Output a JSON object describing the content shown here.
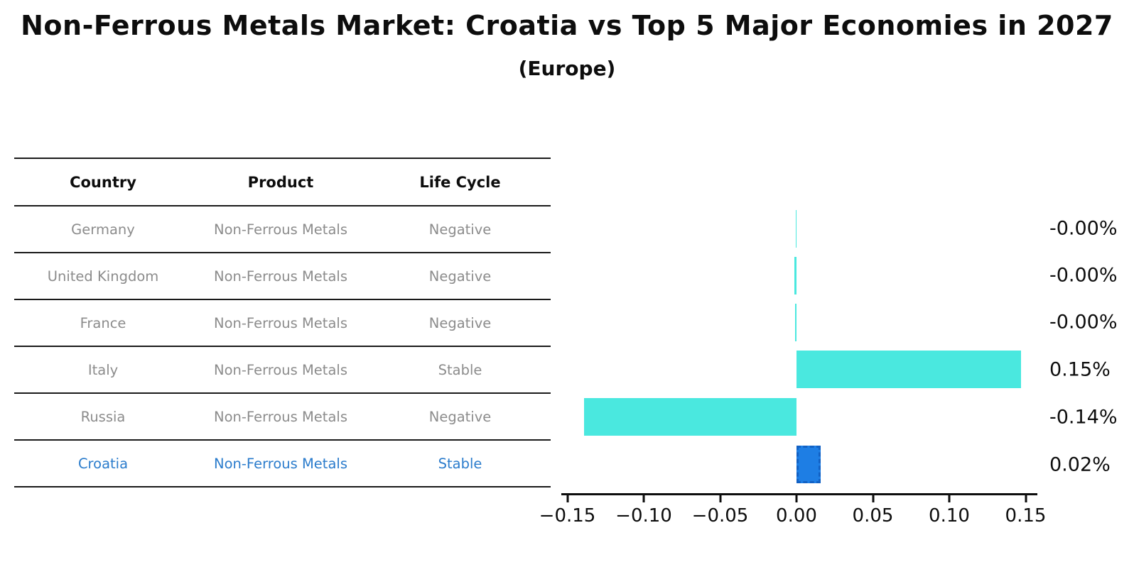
{
  "header": {
    "title": "Non-Ferrous Metals Market: Croatia vs Top 5 Major Economies in 2027",
    "subtitle": "(Europe)"
  },
  "table": {
    "headers": [
      "Country",
      "Product",
      "Life Cycle"
    ],
    "rows": [
      {
        "country": "Germany",
        "product": "Non-Ferrous Metals",
        "life_cycle": "Negative",
        "highlighted": false
      },
      {
        "country": "United Kingdom",
        "product": "Non-Ferrous Metals",
        "life_cycle": "Negative",
        "highlighted": false
      },
      {
        "country": "France",
        "product": "Non-Ferrous Metals",
        "life_cycle": "Negative",
        "highlighted": false
      },
      {
        "country": "Italy",
        "product": "Non-Ferrous Metals",
        "life_cycle": "Stable",
        "highlighted": false
      },
      {
        "country": "Russia",
        "product": "Non-Ferrous Metals",
        "life_cycle": "Negative",
        "highlighted": false
      },
      {
        "country": "Croatia",
        "product": "Non-Ferrous Metals",
        "life_cycle": "Stable",
        "highlighted": true
      }
    ],
    "body_text_color": "#8c8c8c",
    "highlight_text_color": "#2b7ccc"
  },
  "chart_data": {
    "type": "bar",
    "orientation": "horizontal",
    "title": "Non-Ferrous Metals Market: Croatia vs Top 5 Major Economies in 2027",
    "subtitle": "(Europe)",
    "categories": [
      "Germany",
      "United Kingdom",
      "France",
      "Italy",
      "Russia",
      "Croatia"
    ],
    "values": [
      -0.0005,
      -0.0015,
      -0.001,
      0.147,
      -0.139,
      0.016
    ],
    "value_labels": [
      "-0.00%",
      "-0.00%",
      "-0.00%",
      "0.15%",
      "-0.14%",
      "0.02%"
    ],
    "x_ticks": [
      -0.15,
      -0.1,
      -0.05,
      0.0,
      0.05,
      0.1,
      0.15
    ],
    "x_tick_labels": [
      "−0.15",
      "−0.10",
      "−0.05",
      "0.00",
      "0.05",
      "0.10",
      "0.15"
    ],
    "xlim": [
      -0.155,
      0.158
    ],
    "xlabel": "",
    "ylabel": "",
    "grid": false,
    "legend": false,
    "bar_color": "#4ae8df",
    "highlight_bar_color": "#1e7ee4",
    "highlight_bar_border_color": "#1261c4",
    "highlight_index": 5
  }
}
